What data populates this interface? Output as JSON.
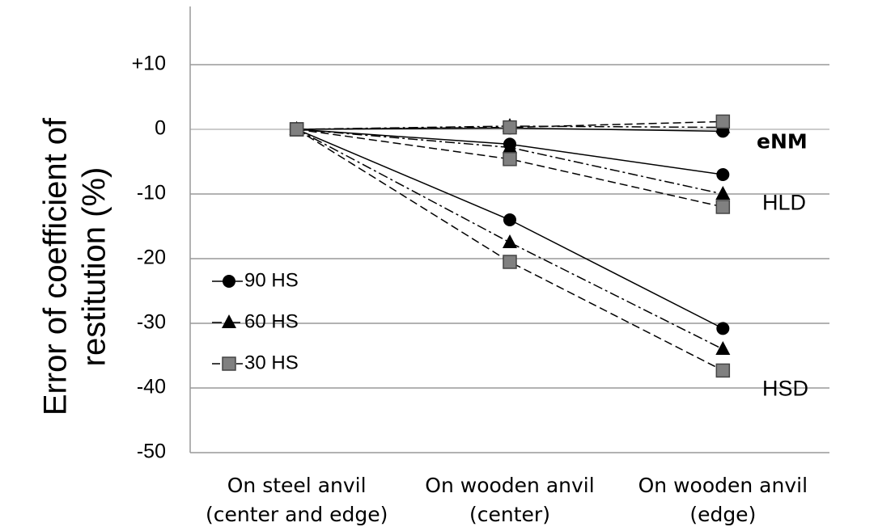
{
  "chart_data": {
    "type": "line",
    "ylabel": [
      "Error of coefficient of",
      "restitution (%)"
    ],
    "categories": [
      [
        "On steel anvil",
        "(center and edge)"
      ],
      [
        "On wooden anvil",
        "(center)"
      ],
      [
        "On wooden anvil",
        "(edge)"
      ]
    ],
    "ylim": [
      -50,
      19
    ],
    "yticks": [
      {
        "value": 10,
        "label": "+10"
      },
      0,
      -10,
      -20,
      -30,
      -40,
      -50
    ],
    "grid": true,
    "legend": [
      {
        "name": "90 HS",
        "marker": "circle",
        "color": "#000000",
        "dash": "solid"
      },
      {
        "name": "60 HS",
        "marker": "triangle",
        "color": "#000000",
        "dash": "dashdot"
      },
      {
        "name": "30 HS",
        "marker": "square",
        "color": "#808080",
        "dash": "dashed"
      }
    ],
    "groups": [
      {
        "label": "eNM",
        "color": "#e8141e",
        "series": [
          [
            0,
            0.2,
            -0.3
          ],
          [
            0,
            0.5,
            0.3
          ],
          [
            0,
            0.3,
            1.2
          ]
        ]
      },
      {
        "label": "HLD",
        "color": "#000000",
        "series": [
          [
            0,
            -2.3,
            -7
          ],
          [
            0,
            -2.8,
            -10
          ],
          [
            0,
            -4.6,
            -12
          ]
        ]
      },
      {
        "label": "HSD",
        "color": "#000000",
        "series": [
          [
            0,
            -14,
            -30.8
          ],
          [
            0,
            -17.5,
            -34
          ],
          [
            0,
            -20.5,
            -37.3
          ]
        ]
      }
    ]
  }
}
